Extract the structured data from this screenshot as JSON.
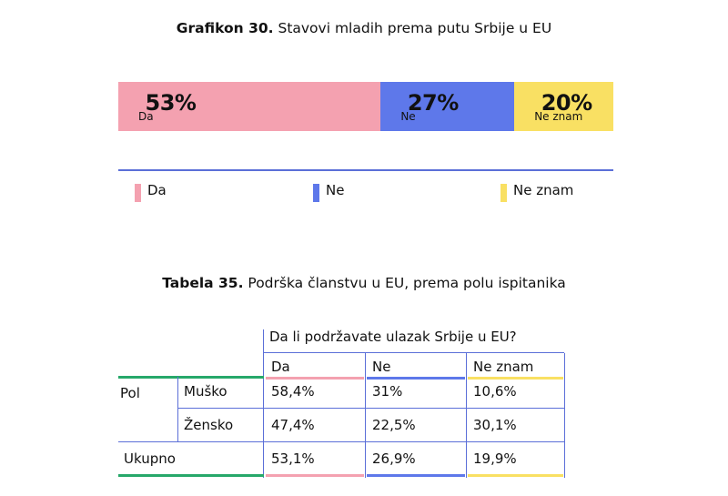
{
  "chart_title": {
    "bold": "Grafikon 30.",
    "rest": " Stavovi mladih prema putu Srbije u EU"
  },
  "chart_data": {
    "type": "bar",
    "orientation": "horizontal-stacked",
    "categories": [
      "Da",
      "Ne",
      "Ne znam"
    ],
    "values": [
      53,
      27,
      20
    ],
    "value_labels": [
      "53%",
      "27%",
      "20%"
    ],
    "colors": [
      "#f4a1b0",
      "#5e78ea",
      "#f9e063"
    ],
    "legend": [
      "Da",
      "Ne",
      "Ne znam"
    ],
    "legend_placement": "bottom",
    "grid": false
  },
  "table": {
    "title_bold": "Tabela 35.",
    "title_rest": " Podrška članstvu u EU, prema polu ispitanika",
    "question": "Da li podržavate ulazak Srbije u EU?",
    "columns": [
      "Da",
      "Ne",
      "Ne znam"
    ],
    "column_colors": [
      "#f4a1b0",
      "#5e78ea",
      "#f9e063"
    ],
    "group_label": "Pol",
    "rows": [
      {
        "label": "Muško",
        "values": [
          "58,4%",
          "31%",
          "10,6%"
        ]
      },
      {
        "label": "Žensko",
        "values": [
          "47,4%",
          "22,5%",
          "30,1%"
        ]
      }
    ],
    "total": {
      "label": "Ukupno",
      "values": [
        "53,1%",
        "26,9%",
        "19,9%"
      ]
    },
    "accent_color": "#27a86a",
    "line_color": "#5b6fd8"
  }
}
